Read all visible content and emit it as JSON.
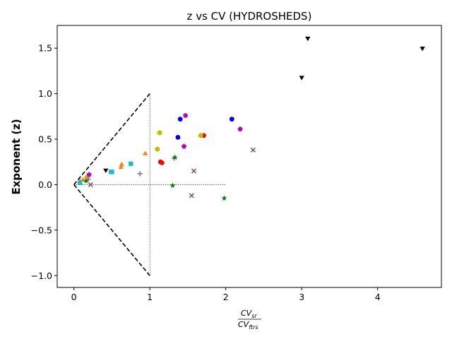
{
  "chart_data": {
    "type": "scatter",
    "title": "z vs CV (HYDROSHEDS)",
    "ylabel": "Exponent (z)",
    "xlabel": {
      "numerator": "CV",
      "numerator_sub": "sr",
      "denominator": "CV",
      "denominator_sub": "ftrs"
    },
    "xlim": [
      -0.22,
      4.84
    ],
    "ylim": [
      -1.13,
      1.75
    ],
    "xticks": [
      0,
      1,
      2,
      3,
      4
    ],
    "yticks": [
      -1.0,
      -0.5,
      0.0,
      0.5,
      1.0,
      1.5
    ],
    "ytick_labels": [
      "−1.0",
      "−0.5",
      "0.0",
      "0.5",
      "1.0",
      "1.5"
    ],
    "grid": false,
    "reference_lines": [
      {
        "name": "triangle-upper",
        "style": "dashed",
        "x": [
          0,
          1
        ],
        "y": [
          0,
          1
        ]
      },
      {
        "name": "triangle-lower",
        "style": "dashed",
        "x": [
          0,
          1
        ],
        "y": [
          0,
          -1
        ]
      },
      {
        "name": "vertical-x1",
        "style": "dotted",
        "x": [
          1,
          1
        ],
        "y": [
          -1,
          1
        ]
      },
      {
        "name": "horizontal-y0",
        "style": "dotted",
        "x": [
          0,
          2
        ],
        "y": [
          0,
          0
        ]
      }
    ],
    "series": [
      {
        "marker": "triangle-down",
        "color": "#000000",
        "points": [
          [
            3.08,
            1.61
          ],
          [
            4.59,
            1.5
          ],
          [
            3.0,
            1.18
          ],
          [
            0.42,
            0.16
          ]
        ]
      },
      {
        "marker": "circle",
        "color": "#0000ff",
        "points": [
          [
            2.08,
            0.72
          ],
          [
            1.4,
            0.72
          ],
          [
            1.37,
            0.52
          ]
        ]
      },
      {
        "marker": "circle",
        "color": "#ff0000",
        "points": [
          [
            1.71,
            0.54
          ],
          [
            1.14,
            0.25
          ],
          [
            1.16,
            0.24
          ]
        ]
      },
      {
        "marker": "hexagon",
        "color": "#bfbf00",
        "points": [
          [
            1.13,
            0.57
          ],
          [
            1.67,
            0.54
          ],
          [
            1.1,
            0.39
          ],
          [
            0.17,
            0.08
          ]
        ]
      },
      {
        "marker": "pentagon",
        "color": "#bf00bf",
        "points": [
          [
            1.47,
            0.76
          ],
          [
            2.19,
            0.61
          ],
          [
            1.45,
            0.42
          ],
          [
            0.2,
            0.11
          ]
        ]
      },
      {
        "marker": "triangle-up",
        "color": "#ff7f0e",
        "points": [
          [
            0.94,
            0.34
          ],
          [
            0.63,
            0.22
          ],
          [
            0.62,
            0.19
          ],
          [
            0.12,
            0.05
          ],
          [
            0.08,
            0.04
          ]
        ]
      },
      {
        "marker": "square",
        "color": "#17becf",
        "points": [
          [
            0.75,
            0.23
          ],
          [
            0.5,
            0.14
          ],
          [
            0.49,
            0.14
          ],
          [
            0.08,
            0.02
          ]
        ]
      },
      {
        "marker": "plus",
        "color": "#9467bd",
        "points": [
          [
            0.87,
            0.12
          ],
          [
            1.32,
            0.29
          ],
          [
            0.19,
            0.06
          ]
        ]
      },
      {
        "marker": "x",
        "color": "#8c564b",
        "points": [
          [
            2.36,
            0.38
          ],
          [
            1.58,
            0.15
          ],
          [
            1.55,
            -0.12
          ],
          [
            0.22,
            0.0
          ]
        ]
      },
      {
        "marker": "star",
        "color": "#008000",
        "points": [
          [
            1.33,
            0.3
          ],
          [
            1.3,
            -0.01
          ],
          [
            1.98,
            -0.15
          ],
          [
            0.16,
            0.04
          ]
        ]
      }
    ]
  }
}
